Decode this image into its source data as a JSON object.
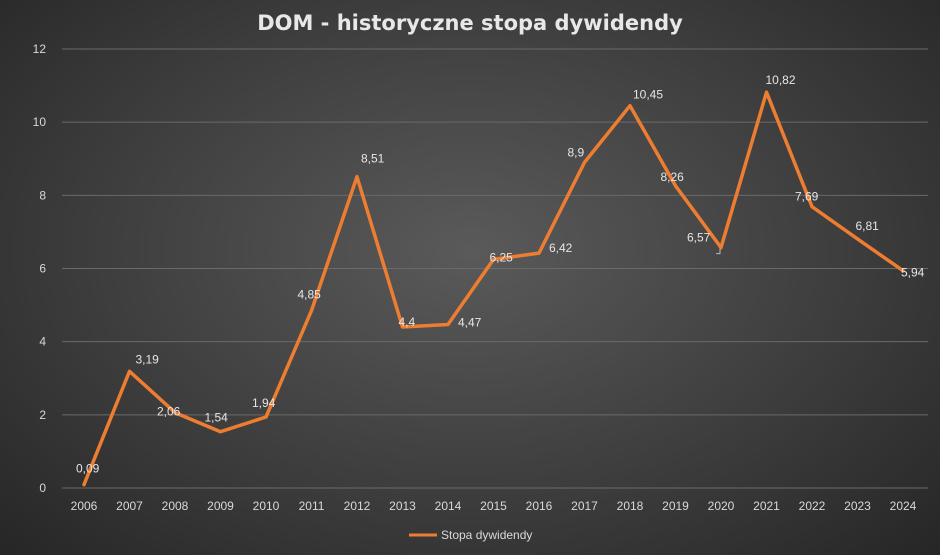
{
  "chart_data": {
    "type": "line",
    "title": "DOM - historyczne stopa dywidendy",
    "categories": [
      "2006",
      "2007",
      "2008",
      "2009",
      "2010",
      "2011",
      "2012",
      "2013",
      "2014",
      "2015",
      "2016",
      "2017",
      "2018",
      "2019",
      "2020",
      "2021",
      "2022",
      "2023",
      "2024"
    ],
    "series": [
      {
        "name": "Stopa dywidendy",
        "values": [
          0.09,
          3.19,
          2.06,
          1.54,
          1.94,
          4.85,
          8.51,
          4.4,
          4.47,
          6.25,
          6.42,
          8.9,
          10.45,
          8.26,
          6.57,
          10.82,
          7.69,
          6.81,
          5.94
        ],
        "labels": [
          "0,09",
          "3,19",
          "2,06",
          "1,54",
          "1,94",
          "4,85",
          "8,51",
          "4,4",
          "4,47",
          "6,25",
          "6,42",
          "8,9",
          "10,45",
          "8,26",
          "6,57",
          "10,82",
          "7,69",
          "6,81",
          "5,94"
        ],
        "color": "#ED7D31"
      }
    ],
    "ylim": [
      0,
      12
    ],
    "yticks": [
      "0",
      "2",
      "4",
      "6",
      "8",
      "10",
      "12"
    ],
    "grid": true,
    "legend": "bottom"
  }
}
